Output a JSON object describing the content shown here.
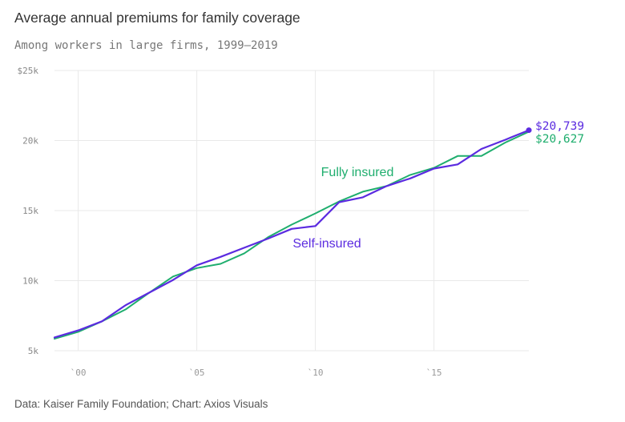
{
  "title": "Average annual premiums for family coverage",
  "subtitle": "Among workers in large firms, 1999–2019",
  "source": "Data: Kaiser Family Foundation; Chart: Axios Visuals",
  "colors": {
    "fully_insured": "#1fae6e",
    "self_insured": "#5b2be0",
    "grid": "#e9e9e9",
    "axis": "#cccccc"
  },
  "chart_data": {
    "type": "line",
    "title": "Average annual premiums for family coverage",
    "subtitle": "Among workers in large firms, 1999–2019",
    "xlabel": "",
    "ylabel": "",
    "xlim": [
      1999,
      2019
    ],
    "ylim": [
      5000,
      25000
    ],
    "grid": true,
    "x_ticks": [
      {
        "value": 2000,
        "label": "`00"
      },
      {
        "value": 2005,
        "label": "`05"
      },
      {
        "value": 2010,
        "label": "`10"
      },
      {
        "value": 2015,
        "label": "`15"
      }
    ],
    "y_ticks": [
      {
        "value": 25000,
        "label": "$25k"
      },
      {
        "value": 20000,
        "label": "20k"
      },
      {
        "value": 15000,
        "label": "15k"
      },
      {
        "value": 10000,
        "label": "10k"
      },
      {
        "value": 5000,
        "label": "5k"
      }
    ],
    "x": [
      1999,
      2000,
      2001,
      2002,
      2003,
      2004,
      2005,
      2006,
      2007,
      2008,
      2009,
      2010,
      2011,
      2012,
      2013,
      2014,
      2015,
      2016,
      2017,
      2018,
      2019
    ],
    "series": [
      {
        "key": "fully_insured",
        "name": "Fully insured",
        "values": [
          5850,
          6350,
          7100,
          7950,
          9150,
          10300,
          10900,
          11200,
          11950,
          13100,
          14000,
          14800,
          15650,
          16350,
          16750,
          17550,
          18050,
          18900,
          18900,
          19850,
          20627
        ],
        "end_label": "$20,627"
      },
      {
        "key": "self_insured",
        "name": "Self-insured",
        "values": [
          5950,
          6450,
          7100,
          8250,
          9150,
          10050,
          11100,
          11700,
          12350,
          13000,
          13700,
          13900,
          15600,
          15950,
          16750,
          17300,
          18000,
          18300,
          19400,
          20050,
          20739
        ],
        "end_label": "$20,739"
      }
    ]
  }
}
